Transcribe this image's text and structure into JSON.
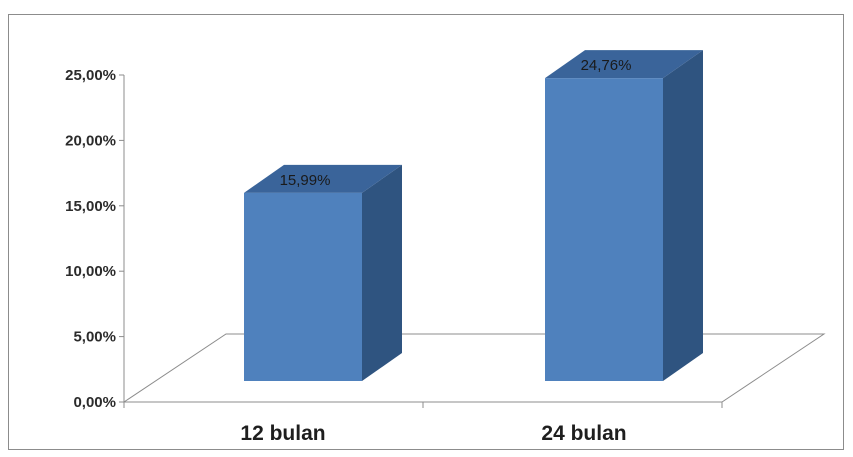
{
  "chart_data": {
    "type": "bar",
    "title": "",
    "xlabel": "",
    "ylabel": "",
    "categories": [
      "12 bulan",
      "24 bulan"
    ],
    "values": [
      15.99,
      24.76
    ],
    "data_labels": [
      "15,99%",
      "24,76%"
    ],
    "y_ticks": [
      "0,00%",
      "5,00%",
      "10,00%",
      "15,00%",
      "20,00%",
      "25,00%"
    ],
    "ylim": [
      0,
      25
    ],
    "grid": false,
    "legend": "none",
    "style": "3d-column",
    "colors": {
      "bar_front": "#4f81bd",
      "bar_side": "#2f5480",
      "bar_top": "#3a649a",
      "axis": "#8c8c8c"
    }
  }
}
